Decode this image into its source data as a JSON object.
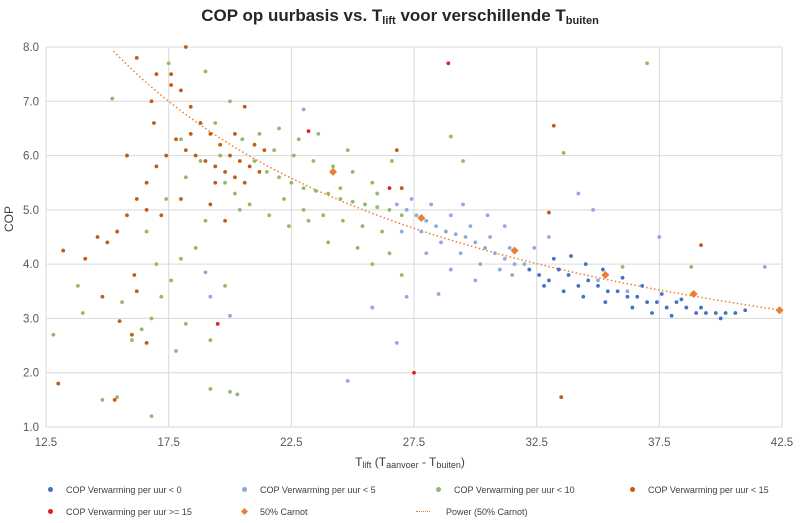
{
  "chart_data": {
    "type": "scatter",
    "title": {
      "main": "COP op uurbasis vs. T",
      "sub1": "lift",
      "mid": " voor verschillende T",
      "sub2": "buiten"
    },
    "xlabel": {
      "main": "T",
      "sub1": "lift",
      "mid": " (T",
      "sub2": "aanvoer",
      "mid2": " - T",
      "sub3": "buiten",
      "end": ")"
    },
    "ylabel": "COP",
    "xlim": [
      12.5,
      42.5
    ],
    "ylim": [
      1.0,
      8.0
    ],
    "xticks": [
      "12.5",
      "17.5",
      "22.5",
      "27.5",
      "32.5",
      "37.5",
      "42.5"
    ],
    "yticks": [
      "1.0",
      "2.0",
      "3.0",
      "4.0",
      "5.0",
      "6.0",
      "7.0",
      "8.0"
    ],
    "grid": "on",
    "legend_position": "bottom",
    "series": [
      {
        "name": "COP Verwarming per uur < 0",
        "color": "#4472c4",
        "marker": "dot",
        "points": [
          [
            32.2,
            3.9
          ],
          [
            32.6,
            3.8
          ],
          [
            33.0,
            3.7
          ],
          [
            33.4,
            3.9
          ],
          [
            33.8,
            3.8
          ],
          [
            34.2,
            3.6
          ],
          [
            34.6,
            3.7
          ],
          [
            35.0,
            3.6
          ],
          [
            35.4,
            3.5
          ],
          [
            35.8,
            3.5
          ],
          [
            36.2,
            3.4
          ],
          [
            36.6,
            3.4
          ],
          [
            37.0,
            3.3
          ],
          [
            37.4,
            3.3
          ],
          [
            37.8,
            3.2
          ],
          [
            38.2,
            3.3
          ],
          [
            38.6,
            3.2
          ],
          [
            39.0,
            3.1
          ],
          [
            39.4,
            3.1
          ],
          [
            39.8,
            3.1
          ],
          [
            40.2,
            3.1
          ],
          [
            40.6,
            3.1
          ],
          [
            41.0,
            3.15
          ],
          [
            33.2,
            4.1
          ],
          [
            33.9,
            4.15
          ],
          [
            34.5,
            4.0
          ],
          [
            35.2,
            3.9
          ],
          [
            36.0,
            3.75
          ],
          [
            36.8,
            3.6
          ],
          [
            37.6,
            3.45
          ],
          [
            38.4,
            3.35
          ],
          [
            32.8,
            3.6
          ],
          [
            33.6,
            3.5
          ],
          [
            34.4,
            3.4
          ],
          [
            35.3,
            3.3
          ],
          [
            36.4,
            3.2
          ],
          [
            37.2,
            3.1
          ],
          [
            38.0,
            3.05
          ],
          [
            39.2,
            3.2
          ],
          [
            40.0,
            3.0
          ]
        ]
      },
      {
        "name": "COP Verwarming per uur < 5",
        "color": "#8faadc",
        "marker": "dot",
        "points": [
          [
            26.8,
            5.1
          ],
          [
            27.2,
            5.0
          ],
          [
            27.6,
            4.9
          ],
          [
            28.0,
            4.8
          ],
          [
            28.4,
            4.7
          ],
          [
            28.8,
            4.6
          ],
          [
            29.2,
            4.55
          ],
          [
            29.6,
            4.5
          ],
          [
            30.0,
            4.4
          ],
          [
            30.4,
            4.3
          ],
          [
            30.8,
            4.2
          ],
          [
            31.2,
            4.1
          ],
          [
            31.6,
            4.0
          ],
          [
            32.0,
            4.0
          ],
          [
            27.4,
            5.2
          ],
          [
            28.2,
            5.1
          ],
          [
            29.0,
            4.9
          ],
          [
            29.8,
            4.7
          ],
          [
            30.6,
            4.5
          ],
          [
            31.4,
            4.3
          ],
          [
            27.8,
            4.6
          ],
          [
            28.6,
            4.4
          ],
          [
            29.4,
            4.2
          ],
          [
            30.2,
            4.0
          ],
          [
            31.0,
            3.9
          ],
          [
            28.0,
            4.2
          ],
          [
            29.0,
            3.9
          ],
          [
            30.0,
            3.7
          ],
          [
            31.5,
            3.8
          ],
          [
            27.0,
            4.6
          ],
          [
            32.4,
            4.3
          ],
          [
            33.0,
            4.5
          ],
          [
            31.2,
            4.7
          ],
          [
            30.5,
            4.9
          ],
          [
            29.5,
            5.1
          ],
          [
            23.0,
            6.85
          ],
          [
            19.0,
            3.85
          ],
          [
            19.2,
            3.4
          ],
          [
            20.0,
            3.05
          ],
          [
            24.8,
            1.85
          ],
          [
            26.8,
            2.55
          ],
          [
            25.8,
            3.2
          ],
          [
            27.2,
            3.4
          ],
          [
            34.2,
            5.3
          ],
          [
            35.0,
            3.7
          ],
          [
            37.5,
            4.5
          ],
          [
            41.8,
            3.95
          ],
          [
            34.8,
            5.0
          ],
          [
            36.2,
            3.5
          ],
          [
            28.5,
            3.45
          ]
        ]
      },
      {
        "name": "COP Verwarming per uur < 10",
        "color": "#8fbc6b",
        "marker": "dot",
        "points": [
          [
            21.0,
            5.9
          ],
          [
            21.5,
            5.7
          ],
          [
            22.0,
            5.6
          ],
          [
            22.5,
            5.5
          ],
          [
            23.0,
            5.4
          ],
          [
            23.5,
            5.35
          ],
          [
            24.0,
            5.3
          ],
          [
            24.5,
            5.2
          ],
          [
            25.0,
            5.15
          ],
          [
            25.5,
            5.1
          ],
          [
            26.0,
            5.05
          ],
          [
            26.5,
            5.0
          ],
          [
            21.8,
            6.1
          ],
          [
            22.6,
            6.0
          ],
          [
            23.4,
            5.9
          ],
          [
            24.2,
            5.8
          ],
          [
            25.0,
            5.7
          ],
          [
            25.8,
            5.5
          ],
          [
            22.2,
            5.2
          ],
          [
            23.0,
            5.0
          ],
          [
            23.8,
            4.9
          ],
          [
            24.6,
            4.8
          ],
          [
            25.4,
            4.7
          ],
          [
            26.2,
            4.6
          ],
          [
            20.5,
            6.3
          ],
          [
            21.2,
            6.4
          ],
          [
            22.0,
            6.5
          ],
          [
            22.8,
            6.3
          ],
          [
            19.8,
            5.5
          ],
          [
            20.4,
            5.0
          ],
          [
            19.0,
            4.8
          ],
          [
            18.6,
            4.3
          ],
          [
            18.0,
            4.1
          ],
          [
            17.6,
            3.7
          ],
          [
            17.2,
            3.4
          ],
          [
            16.8,
            3.0
          ],
          [
            16.4,
            2.8
          ],
          [
            16.0,
            2.6
          ],
          [
            18.2,
            2.9
          ],
          [
            17.8,
            2.4
          ],
          [
            19.2,
            2.6
          ],
          [
            19.8,
            3.6
          ],
          [
            16.6,
            4.6
          ],
          [
            15.6,
            3.3
          ],
          [
            14.8,
            1.5
          ],
          [
            15.4,
            1.55
          ],
          [
            16.8,
            1.2
          ],
          [
            19.2,
            1.7
          ],
          [
            20.0,
            1.65
          ],
          [
            20.3,
            1.6
          ],
          [
            12.8,
            2.7
          ],
          [
            14.0,
            3.1
          ],
          [
            13.8,
            3.6
          ],
          [
            15.2,
            7.05
          ],
          [
            17.5,
            7.7
          ],
          [
            19.0,
            7.55
          ],
          [
            26.5,
            4.2
          ],
          [
            25.8,
            4.0
          ],
          [
            24.0,
            4.4
          ],
          [
            18.8,
            5.9
          ],
          [
            18.2,
            5.6
          ],
          [
            18.0,
            6.3
          ],
          [
            17.4,
            5.2
          ],
          [
            17.0,
            4.0
          ],
          [
            27.0,
            3.8
          ],
          [
            29.5,
            5.9
          ],
          [
            29.0,
            6.35
          ],
          [
            33.6,
            6.05
          ],
          [
            36.0,
            3.95
          ],
          [
            37.0,
            7.7
          ],
          [
            38.8,
            3.95
          ],
          [
            24.5,
            5.4
          ],
          [
            23.2,
            4.8
          ],
          [
            22.4,
            4.7
          ],
          [
            21.6,
            4.9
          ],
          [
            20.8,
            5.1
          ],
          [
            20.2,
            5.3
          ],
          [
            19.6,
            6.0
          ],
          [
            19.4,
            6.6
          ],
          [
            20.0,
            7.0
          ],
          [
            23.6,
            6.4
          ],
          [
            24.8,
            6.1
          ],
          [
            26.0,
            5.3
          ],
          [
            27.0,
            4.9
          ],
          [
            25.2,
            4.3
          ],
          [
            26.6,
            5.9
          ]
        ]
      },
      {
        "name": "COP Verwarming per uur < 15",
        "color": "#c55a11",
        "marker": "dot",
        "points": [
          [
            17.6,
            7.5
          ],
          [
            18.0,
            7.2
          ],
          [
            18.4,
            6.9
          ],
          [
            18.8,
            6.6
          ],
          [
            19.2,
            6.4
          ],
          [
            19.6,
            6.2
          ],
          [
            20.0,
            6.0
          ],
          [
            20.4,
            5.9
          ],
          [
            20.8,
            5.8
          ],
          [
            21.2,
            5.7
          ],
          [
            17.8,
            6.3
          ],
          [
            18.2,
            6.1
          ],
          [
            18.6,
            6.0
          ],
          [
            19.0,
            5.9
          ],
          [
            19.4,
            5.8
          ],
          [
            19.8,
            5.7
          ],
          [
            20.2,
            5.6
          ],
          [
            20.6,
            5.5
          ],
          [
            17.4,
            6.0
          ],
          [
            17.0,
            5.8
          ],
          [
            16.6,
            5.5
          ],
          [
            16.2,
            5.2
          ],
          [
            15.8,
            4.9
          ],
          [
            15.4,
            4.6
          ],
          [
            15.0,
            4.4
          ],
          [
            14.6,
            4.5
          ],
          [
            13.2,
            4.25
          ],
          [
            14.1,
            4.1
          ],
          [
            13.0,
            1.8
          ],
          [
            15.3,
            1.5
          ],
          [
            16.6,
            2.55
          ],
          [
            15.5,
            2.95
          ],
          [
            16.0,
            2.7
          ],
          [
            16.2,
            3.5
          ],
          [
            14.8,
            3.4
          ],
          [
            16.1,
            3.8
          ],
          [
            16.8,
            7.0
          ],
          [
            16.2,
            7.8
          ],
          [
            17.0,
            7.5
          ],
          [
            18.2,
            8.0
          ],
          [
            17.6,
            7.3
          ],
          [
            18.4,
            6.4
          ],
          [
            19.2,
            5.1
          ],
          [
            19.8,
            4.8
          ],
          [
            20.6,
            6.9
          ],
          [
            21.0,
            6.2
          ],
          [
            26.8,
            6.1
          ],
          [
            27.0,
            5.4
          ],
          [
            33.2,
            6.55
          ],
          [
            33.5,
            1.55
          ],
          [
            39.2,
            4.35
          ],
          [
            33.0,
            4.95
          ],
          [
            15.8,
            6.0
          ],
          [
            16.6,
            5.0
          ],
          [
            17.2,
            4.9
          ],
          [
            18.0,
            5.2
          ],
          [
            19.4,
            5.5
          ],
          [
            20.2,
            6.4
          ],
          [
            21.4,
            6.1
          ],
          [
            16.9,
            6.6
          ]
        ]
      },
      {
        "name": "COP Verwarming per uur >= 15",
        "color": "#e02020",
        "marker": "dot",
        "points": [
          [
            19.5,
            2.9
          ],
          [
            28.9,
            7.7
          ],
          [
            27.5,
            2.0
          ],
          [
            26.5,
            5.4
          ],
          [
            23.2,
            6.45
          ]
        ]
      },
      {
        "name": "50% Carnot",
        "color": "#ed7d31",
        "marker": "diamond",
        "points": [
          [
            24.2,
            5.7
          ],
          [
            27.8,
            4.85
          ],
          [
            31.6,
            4.25
          ],
          [
            35.3,
            3.8
          ],
          [
            38.9,
            3.45
          ],
          [
            42.4,
            3.15
          ]
        ]
      },
      {
        "name": "Power (50% Carnot)",
        "color": "#ed7d31",
        "marker": "line",
        "trend": {
          "a": 92.0,
          "b": -0.9
        }
      }
    ]
  }
}
